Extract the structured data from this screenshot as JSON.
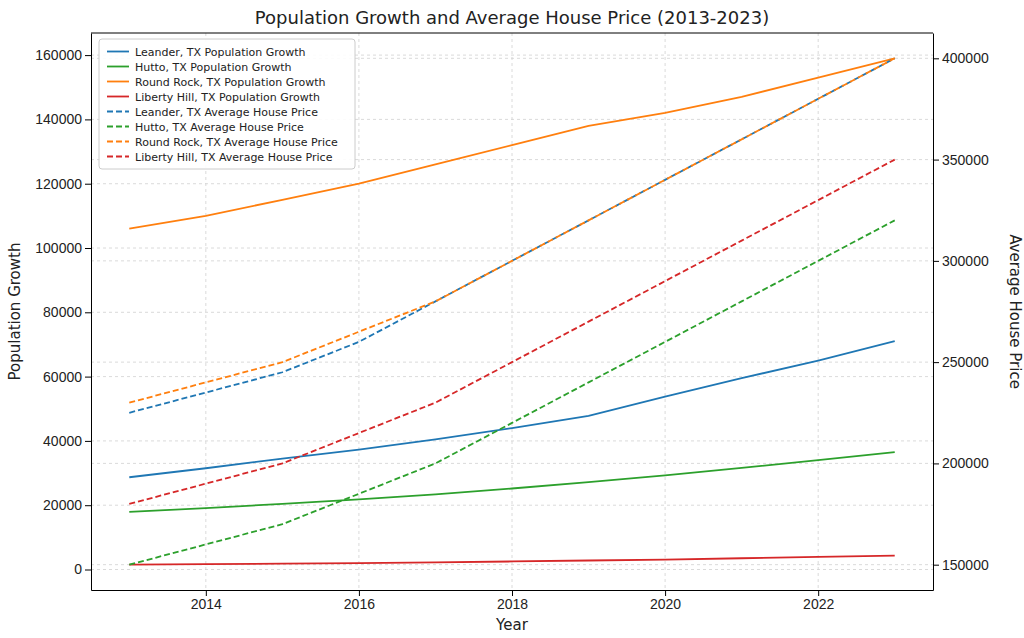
{
  "chart_data": {
    "type": "line",
    "title": "Population Growth and Average House Price (2013-2023)",
    "x_label": "Year",
    "y_label": "Population Growth",
    "y2_label": "Average House Price",
    "x": [
      2013,
      2014,
      2015,
      2016,
      2017,
      2018,
      2019,
      2020,
      2021,
      2022,
      2023
    ],
    "xlim": [
      2012.5,
      2023.5
    ],
    "xticks": [
      2014,
      2016,
      2018,
      2020,
      2022
    ],
    "ylim": [
      -6375,
      166875
    ],
    "yticks": [
      0,
      20000,
      40000,
      60000,
      80000,
      100000,
      120000,
      140000,
      160000
    ],
    "y2lim": [
      137500,
      412500
    ],
    "y2ticks": [
      150000,
      200000,
      250000,
      300000,
      350000,
      400000
    ],
    "grid": true,
    "legend": "upper left",
    "series": [
      {
        "name": "Leander, TX Population Growth",
        "color": "#1f77b4",
        "line_style": "solid",
        "values": [
          28700,
          31500,
          34500,
          37300,
          40500,
          44000,
          47800,
          53800,
          59500,
          65000,
          71000
        ]
      },
      {
        "name": "Hutto, TX Population Growth",
        "color": "#2ca02c",
        "line_style": "solid",
        "values": [
          17900,
          19100,
          20400,
          21800,
          23400,
          25200,
          27200,
          29300,
          31600,
          34000,
          36500
        ]
      },
      {
        "name": "Round Rock, TX Population Growth",
        "color": "#ff7f0e",
        "line_style": "solid",
        "values": [
          106000,
          110000,
          115000,
          120000,
          126000,
          132000,
          138000,
          142000,
          147000,
          153000,
          159000
        ]
      },
      {
        "name": "Liberty Hill, TX Population Growth",
        "color": "#d62728",
        "line_style": "solid",
        "values": [
          1500,
          1700,
          1800,
          2000,
          2200,
          2500,
          2800,
          3100,
          3500,
          3900,
          4300
        ]
      },
      {
        "name": "Leander, TX Average House Price",
        "color": "#1f77b4",
        "line_style": "dashed",
        "axis": "y2",
        "values": [
          225000,
          235000,
          245000,
          260000,
          280000,
          300000,
          320000,
          340000,
          360000,
          380000,
          400000
        ]
      },
      {
        "name": "Hutto, TX Average House Price",
        "color": "#2ca02c",
        "line_style": "dashed",
        "axis": "y2",
        "values": [
          150000,
          160000,
          170000,
          185000,
          200000,
          220000,
          240000,
          260000,
          280000,
          300000,
          320000
        ]
      },
      {
        "name": "Round Rock, TX Average House Price",
        "color": "#ff7f0e",
        "line_style": "dashed",
        "axis": "y2",
        "values": [
          230000,
          240000,
          250000,
          265000,
          280000,
          300000,
          320000,
          340000,
          360000,
          380000,
          400000
        ]
      },
      {
        "name": "Liberty Hill, TX Average House Price",
        "color": "#d62728",
        "line_style": "dashed",
        "axis": "y2",
        "values": [
          180000,
          190000,
          200000,
          215000,
          230000,
          250000,
          270000,
          290000,
          310000,
          330000,
          350000
        ]
      }
    ]
  }
}
